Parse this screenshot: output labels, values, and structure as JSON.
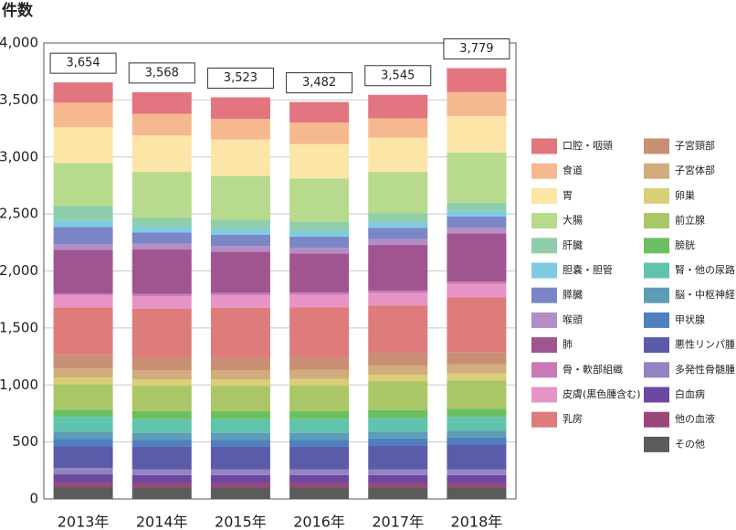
{
  "chart_data": {
    "type": "stacked_bar",
    "y_label": "件数",
    "categories": [
      "2013年",
      "2014年",
      "2015年",
      "2016年",
      "2017年",
      "2018年"
    ],
    "ylim": [
      0,
      4000
    ],
    "yticks": [
      0,
      500,
      {
        "value": 1000,
        "label": "1,000"
      },
      {
        "value": 1500,
        "label": "1,500"
      },
      {
        "value": 2000,
        "label": "2,000"
      },
      {
        "value": 2500,
        "label": "2,500"
      },
      {
        "value": 3000,
        "label": "3,000"
      },
      {
        "value": 3500,
        "label": "3,500"
      },
      {
        "value": 4000,
        "label": "4,000"
      }
    ],
    "grid": true,
    "totals": [
      3654,
      3568,
      3523,
      3482,
      3545,
      3779
    ],
    "total_labels": [
      "3,654",
      "3,568",
      "3,523",
      "3,482",
      "3,545",
      "3,779"
    ],
    "series": [
      {
        "name": "口腔・咽頭",
        "color": "#e2757f",
        "values": [
          178,
          190,
          190,
          180,
          207,
          210
        ]
      },
      {
        "name": "食道",
        "color": "#f6b98f",
        "values": [
          216,
          190,
          180,
          190,
          170,
          210
        ]
      },
      {
        "name": "胃",
        "color": "#fbe6a8",
        "values": [
          313,
          320,
          320,
          300,
          300,
          320
        ]
      },
      {
        "name": "大腸",
        "color": "#b7da8c",
        "values": [
          377,
          400,
          385,
          380,
          360,
          440
        ]
      },
      {
        "name": "肝臓",
        "color": "#8fceaa",
        "values": [
          128,
          80,
          80,
          80,
          80,
          71
        ]
      },
      {
        "name": "胆嚢・胆管",
        "color": "#7ecbe1",
        "values": [
          56,
          50,
          50,
          50,
          50,
          50
        ]
      },
      {
        "name": "膵臓",
        "color": "#7b86c6",
        "values": [
          152,
          100,
          100,
          100,
          100,
          100
        ]
      },
      {
        "name": "喉頭",
        "color": "#b48dc5",
        "values": [
          48,
          50,
          50,
          50,
          50,
          50
        ]
      },
      {
        "name": "肺",
        "color": "#a05590",
        "values": [
          385,
          390,
          360,
          340,
          400,
          420
        ]
      },
      {
        "name": "骨・軟部組織",
        "color": "#c77ab5",
        "values": [
          16,
          20,
          20,
          20,
          20,
          20
        ]
      },
      {
        "name": "皮膚(黒色腫含む)",
        "color": "#e694c5",
        "values": [
          104,
          110,
          110,
          110,
          110,
          120
        ]
      },
      {
        "name": "乳房",
        "color": "#de7b7b",
        "values": [
          417,
          430,
          440,
          440,
          420,
          480
        ]
      },
      {
        "name": "子宮頸部",
        "color": "#c98f74",
        "values": [
          120,
          108,
          108,
          108,
          108,
          108
        ]
      },
      {
        "name": "子宮体部",
        "color": "#d2ac7d",
        "values": [
          80,
          80,
          80,
          80,
          80,
          80
        ]
      },
      {
        "name": "卵巣",
        "color": "#d8cf78",
        "values": [
          56,
          60,
          60,
          60,
          60,
          60
        ]
      },
      {
        "name": "前立腺",
        "color": "#aac666",
        "values": [
          224,
          220,
          220,
          224,
          250,
          250
        ]
      },
      {
        "name": "膀胱",
        "color": "#6cbf60",
        "values": [
          64,
          70,
          70,
          70,
          70,
          70
        ]
      },
      {
        "name": "腎・他の尿路",
        "color": "#60c3ae",
        "values": [
          128,
          120,
          120,
          120,
          120,
          120
        ]
      },
      {
        "name": "脳・中枢神経系",
        "color": "#5d9db6",
        "values": [
          64,
          60,
          60,
          60,
          60,
          60
        ]
      },
      {
        "name": "甲状腺",
        "color": "#4e80bf",
        "values": [
          64,
          60,
          60,
          60,
          60,
          60
        ]
      },
      {
        "name": "悪性リンパ腫",
        "color": "#5a5ba9",
        "values": [
          192,
          200,
          200,
          200,
          210,
          220
        ]
      },
      {
        "name": "多発性骨髄腫",
        "color": "#9383c0",
        "values": [
          56,
          50,
          50,
          50,
          50,
          50
        ]
      },
      {
        "name": "白血病",
        "color": "#6b49a0",
        "values": [
          72,
          70,
          70,
          70,
          70,
          70
        ]
      },
      {
        "name": "他の血液",
        "color": "#9a4679",
        "values": [
          40,
          40,
          40,
          40,
          40,
          40
        ]
      },
      {
        "name": "その他",
        "color": "#5b5b5b",
        "values": [
          104,
          100,
          100,
          100,
          100,
          100
        ]
      }
    ]
  }
}
